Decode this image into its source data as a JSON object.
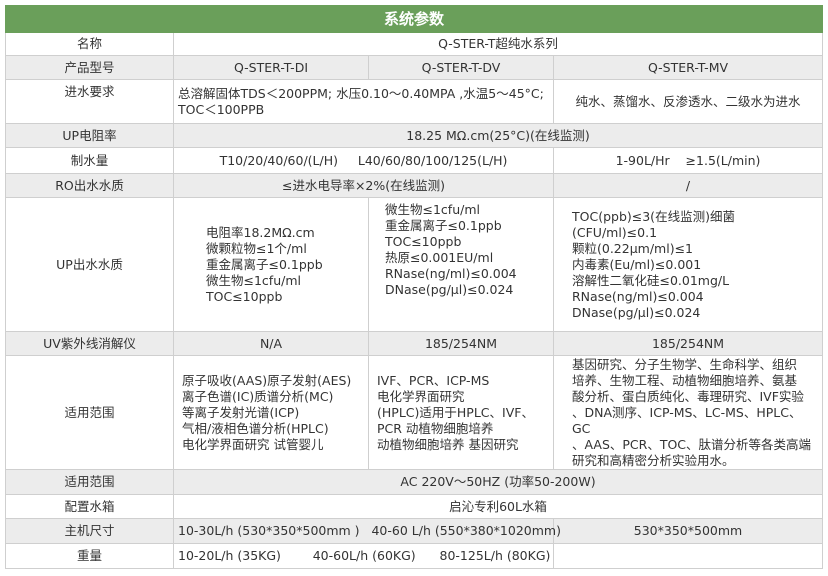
{
  "title": "系统参数",
  "rows": {
    "name": {
      "label": "名称",
      "value": "Q-STER-T超纯水系列"
    },
    "model": {
      "label": "产品型号",
      "values": [
        "Q-STER-T-DI",
        "Q-STER-T-DV",
        "Q-STER-T-MV"
      ]
    },
    "inlet": {
      "label": "进水要求",
      "value_12": "总溶解固体TDS＜200PPM; 水压0.10～0.40MPA ,水温5～45°C;\nTOC＜100PPB",
      "value_3": "纯水、蒸馏水、反渗透水、二级水为进水"
    },
    "resistivity": {
      "label": "UP电阻率",
      "value": "18.25 MΩ.cm(25°C)(在线监测)"
    },
    "production": {
      "label": "制水量",
      "value_12": "T10/20/40/60/(L/H)     L40/60/80/100/125(L/H)",
      "value_3": "1-90L/Hr    ≥1.5(L/min)"
    },
    "ro_quality": {
      "label": "RO出水水质",
      "value_12": "≤进水电导率×2%(在线监测)",
      "value_3": "/"
    },
    "up_quality": {
      "label": "UP出水水质",
      "values": [
        "电阻率18.2MΩ.cm\n微颗粒物≤1个/ml\n重金属离子≤0.1ppb\n微生物≤1cfu/ml\nTOC≤10ppb",
        "微生物≤1cfu/ml\n重金属离子≤0.1ppb\nTOC≤10ppb\n热原≤0.001EU/ml\nRNase(ng/ml)≤0.004\nDNase(pg/μl)≤0.024",
        "TOC(ppb)≤3(在线监测)细菌\n(CFU/ml)≤0.1\n颗粒(0.22μm/ml)≤1\n内毒素(Eu/ml)≤0.001\n溶解性二氧化硅≤0.01mg/L\nRNase(ng/ml)≤0.004\nDNase(pg/μl)≤0.024"
      ]
    },
    "uv": {
      "label": "UV紫外线消解仪",
      "values": [
        "N/A",
        "185/254NM",
        "185/254NM"
      ]
    },
    "application": {
      "label": "适用范围",
      "values": [
        "原子吸收(AAS)原子发射(AES)\n离子色谱(IC)质谱分析(MC)\n等离子发射光谱(ICP)\n气相/液相色谱分析(HPLC)\n电化学界面研究 试管婴儿",
        "IVF、PCR、ICP-MS\n电化学界面研究\n(HPLC)适用于HPLC、IVF、\nPCR 动植物细胞培养\n动植物细胞培养 基因研究",
        "基因研究、分子生物学、生命科学、组织\n培养、生物工程、动植物细胞培养、氨基\n酸分析、蛋白质纯化、毒理研究、IVF实验\n、DNA测序、ICP-MS、LC-MS、HPLC、GC\n、AAS、PCR、TOC、肽谱分析等各类高端\n研究和高精密分析实验用水。"
      ]
    },
    "power": {
      "label": "适用范围",
      "value": "AC 220V～50HZ (功率50-200W)"
    },
    "tank": {
      "label": "配置水箱",
      "value": "启沁专利60L水箱"
    },
    "size": {
      "label": "主机尺寸",
      "value_12": "10-30L/h (530*350*500mm )   40-60 L/h (550*380*1020mm)",
      "value_3": "530*350*500mm"
    },
    "weight": {
      "label": "重量",
      "value_12": "10-20L/h (35KG)        40-60L/h (60KG)      80-125L/h (80KG)",
      "value_3": ""
    }
  }
}
